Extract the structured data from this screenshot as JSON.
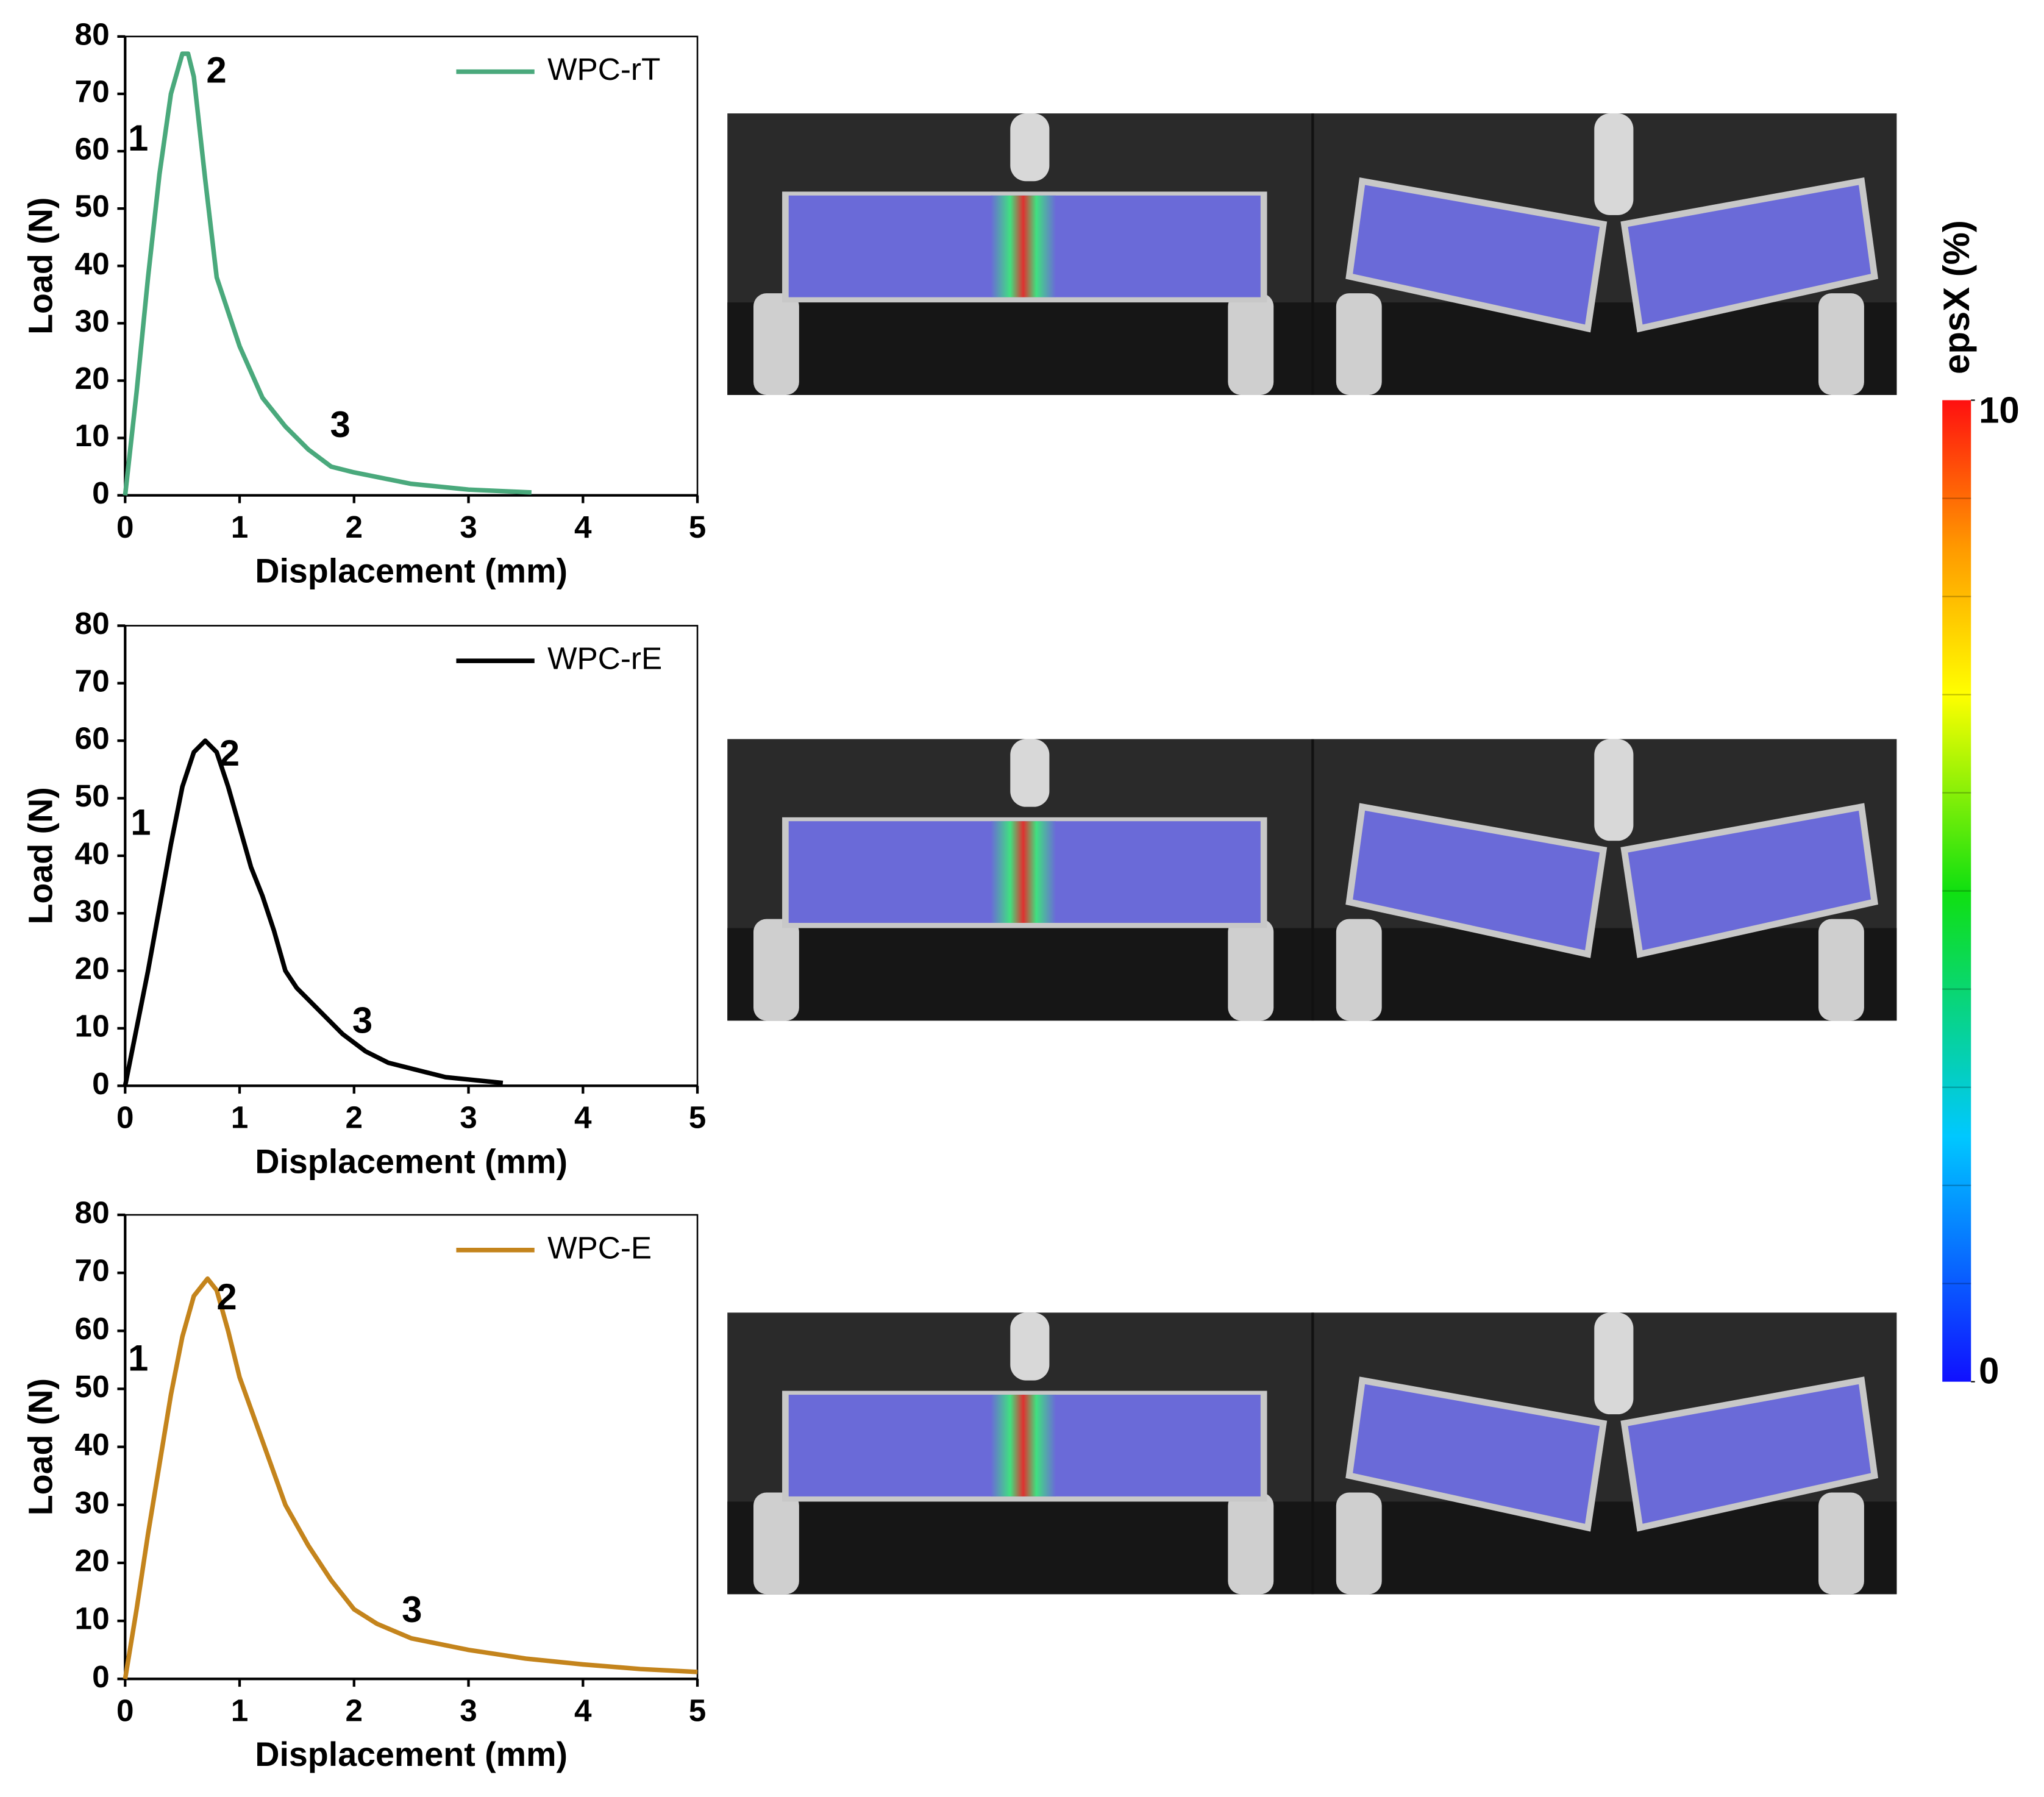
{
  "chart_data": [
    {
      "type": "line",
      "xlabel": "Displacement (mm)",
      "ylabel": "Load (N)",
      "x": [
        0,
        0.1,
        0.2,
        0.3,
        0.4,
        0.5,
        0.55,
        0.6,
        0.7,
        0.8,
        0.9,
        1.0,
        1.2,
        1.4,
        1.6,
        1.8,
        2.0,
        2.5,
        3.0,
        3.55
      ],
      "series": [
        {
          "name": "WPC-rT",
          "color": "#4aa97c",
          "values": [
            0,
            18,
            38,
            56,
            70,
            77,
            77,
            73,
            55,
            38,
            32,
            26,
            17,
            12,
            8,
            5,
            4,
            2,
            1,
            0.5
          ]
        }
      ],
      "annotations": [
        "1",
        "2",
        "3"
      ],
      "xlim": [
        0,
        5
      ],
      "xticks": [
        0,
        1,
        2,
        3,
        4,
        5
      ],
      "ylim": [
        0,
        80
      ],
      "yticks": [
        0,
        10,
        20,
        30,
        40,
        50,
        60,
        70,
        80
      ],
      "legend": "upper right"
    },
    {
      "type": "line",
      "xlabel": "Displacement (mm)",
      "ylabel": "Load (N)",
      "x": [
        0,
        0.1,
        0.2,
        0.3,
        0.4,
        0.5,
        0.6,
        0.7,
        0.8,
        0.9,
        1.0,
        1.1,
        1.2,
        1.3,
        1.4,
        1.5,
        1.7,
        1.9,
        2.1,
        2.3,
        2.5,
        2.8,
        3.3
      ],
      "series": [
        {
          "name": "WPC-rE",
          "color": "#000000",
          "values": [
            0,
            10,
            20,
            31,
            42,
            52,
            58,
            60,
            58,
            52,
            45,
            38,
            33,
            27,
            20,
            17,
            13,
            9,
            6,
            4,
            3,
            1.5,
            0.5
          ]
        }
      ],
      "annotations": [
        "1",
        "2",
        "3"
      ],
      "xlim": [
        0,
        5
      ],
      "xticks": [
        0,
        1,
        2,
        3,
        4,
        5
      ],
      "ylim": [
        0,
        80
      ],
      "yticks": [
        0,
        10,
        20,
        30,
        40,
        50,
        60,
        70,
        80
      ],
      "legend": "upper right"
    },
    {
      "type": "line",
      "xlabel": "Displacement (mm)",
      "ylabel": "Load (N)",
      "x": [
        0,
        0.1,
        0.2,
        0.3,
        0.4,
        0.5,
        0.6,
        0.72,
        0.8,
        0.9,
        1.0,
        1.2,
        1.4,
        1.6,
        1.8,
        2.0,
        2.2,
        2.5,
        3.0,
        3.5,
        4.0,
        4.5,
        5.0
      ],
      "series": [
        {
          "name": "WPC-E",
          "color": "#c4841c",
          "values": [
            0,
            12,
            25,
            37,
            49,
            59,
            66,
            69,
            67,
            60,
            52,
            41,
            30,
            23,
            17,
            12,
            9.5,
            7,
            5,
            3.5,
            2.5,
            1.7,
            1.2
          ]
        }
      ],
      "annotations": [
        "1",
        "2",
        "3"
      ],
      "xlim": [
        0,
        5
      ],
      "xticks": [
        0,
        1,
        2,
        3,
        4,
        5
      ],
      "ylim": [
        0,
        80
      ],
      "yticks": [
        0,
        10,
        20,
        30,
        40,
        50,
        60,
        70,
        80
      ],
      "legend": "upper right"
    }
  ],
  "colorbar": {
    "label": "epsX (%)",
    "lim": [
      0,
      10
    ],
    "ticks": [
      10,
      0
    ]
  }
}
